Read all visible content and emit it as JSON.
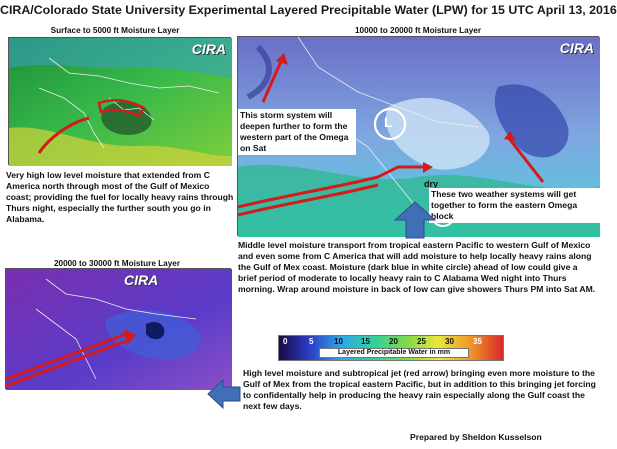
{
  "title": "CIRA/Colorado State University Experimental Layered Precipitable Water (LPW) for 15 UTC April 13, 2016",
  "panels": {
    "surface": {
      "caption": "Surface to 5000 ft Moisture Layer",
      "logo": "CIRA",
      "description": "Very high low level moisture that extended from C America north through most of the Gulf of Mexico coast; providing the fuel for locally heavy rains through Thurs night, especially the further south you go in Alabama."
    },
    "mid": {
      "caption": "10000 to 20000 ft Moisture Layer",
      "logo": "CIRA",
      "storm_callout": "This storm system will deepen further to form the western part of the Omega on Sat",
      "low_symbol": "L",
      "dry_label": "dry",
      "two_systems_callout": "These two weather systems will get together to form the eastern Omega block",
      "description": "Middle level moisture transport from tropical eastern Pacific to western Gulf of Mexico and even some from C America that will add moisture to help locally heavy rains along the Gulf of Mex coast. Moisture (dark blue in white circle) ahead of low could give a brief period of moderate to locally heavy rain to C Alabama Wed night into Thurs morning.  Wrap around moisture in back of low can give showers Thurs PM into Sat AM."
    },
    "upper": {
      "caption": "20000 to 30000 ft Moisture Layer",
      "logo": "CIRA",
      "description": "High level moisture and subtropical jet (red arrow) bringing even more moisture to the Gulf of Mex from the tropical eastern Pacific, but in addition to this bringing jet forcing to confidentally help in producing the heavy rain especially along the Gulf coast the next few days."
    }
  },
  "colorbar": {
    "ticks": [
      "0",
      "5",
      "10",
      "15",
      "20",
      "25",
      "30",
      "35"
    ],
    "label": "Layered Precipitable Water in mm"
  },
  "credit": "Prepared by Sheldon Kusselson",
  "colors": {
    "arrow_red": "#d31b1b",
    "arrow_blue": "#3f6fb6",
    "green_moist": "#2fb53a",
    "dark_blue_moist": "#1a2fa0"
  }
}
